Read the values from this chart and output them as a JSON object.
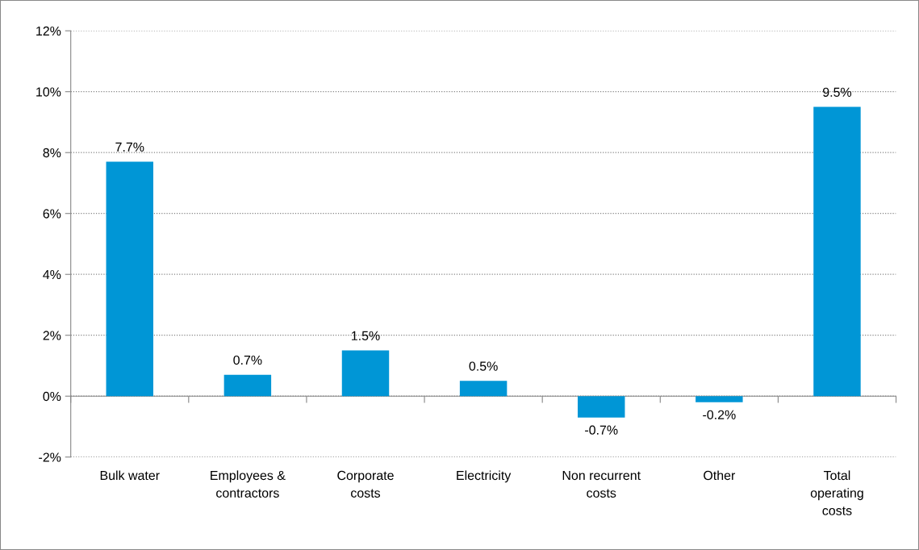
{
  "chart_data": {
    "type": "bar",
    "categories": [
      "Bulk water",
      "Employees &\ncontractors",
      "Corporate\ncosts",
      "Electricity",
      "Non recurrent\ncosts",
      "Other",
      "Total\noperating\ncosts"
    ],
    "values": [
      7.7,
      0.7,
      1.5,
      0.5,
      -0.7,
      -0.2,
      9.5
    ],
    "value_labels": [
      "7.7%",
      "0.7%",
      "1.5%",
      "0.5%",
      "-0.7%",
      "-0.2%",
      "9.5%"
    ],
    "color": "#0096d6",
    "ylim": [
      -2,
      12
    ],
    "yticks": [
      {
        "value": -2,
        "label": "-2%"
      },
      {
        "value": 0,
        "label": "0%"
      },
      {
        "value": 2,
        "label": "2%"
      },
      {
        "value": 4,
        "label": "4%"
      },
      {
        "value": 6,
        "label": "6%"
      },
      {
        "value": 8,
        "label": "8%"
      },
      {
        "value": 10,
        "label": "10%"
      },
      {
        "value": 12,
        "label": "12%"
      }
    ],
    "grid": "y"
  }
}
